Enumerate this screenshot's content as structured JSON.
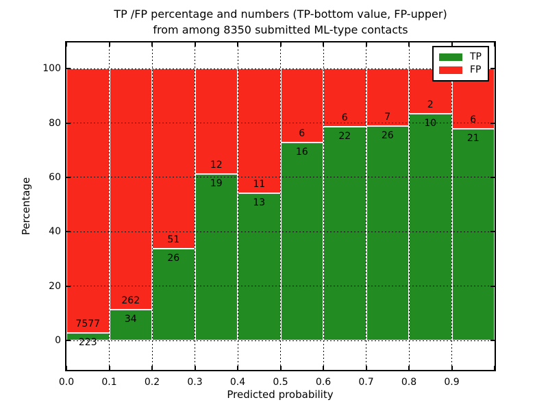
{
  "figure": {
    "title_line1": "TP /FP percentage and numbers (TP-bottom value, FP-upper)",
    "title_line2": "from among 8350 submitted ML-type contacts"
  },
  "chart_data": {
    "type": "bar",
    "subtype": "stacked-percentage-histogram",
    "title": "TP /FP percentage and numbers (TP-bottom value, FP-upper) from among 8350 submitted ML-type contacts",
    "xlabel": "Predicted probability",
    "ylabel": "Percentage",
    "bin_edges": [
      0.0,
      0.1,
      0.2,
      0.3,
      0.4,
      0.5,
      0.6,
      0.7,
      0.8,
      0.9,
      1.0
    ],
    "series": [
      {
        "name": "TP",
        "color": "#228b22",
        "counts": [
          223,
          34,
          26,
          19,
          13,
          16,
          22,
          26,
          10,
          21
        ],
        "percent": [
          2.86,
          11.49,
          33.77,
          61.29,
          54.17,
          72.73,
          78.57,
          78.79,
          83.33,
          77.78
        ]
      },
      {
        "name": "FP",
        "color": "#f8281c",
        "counts": [
          7577,
          262,
          51,
          12,
          11,
          6,
          6,
          7,
          2,
          6
        ],
        "percent": [
          97.14,
          88.51,
          66.23,
          38.71,
          45.83,
          27.27,
          21.43,
          21.21,
          16.67,
          22.22
        ]
      }
    ],
    "xticks": [
      "0.0",
      "0.1",
      "0.2",
      "0.3",
      "0.4",
      "0.5",
      "0.6",
      "0.7",
      "0.8",
      "0.9"
    ],
    "yticks": [
      0,
      20,
      40,
      60,
      80,
      100
    ],
    "xlim": [
      0.0,
      1.0
    ],
    "ylim": [
      -10.8,
      109.6
    ],
    "grid": "dotted",
    "legend": {
      "position": "upper right"
    }
  }
}
